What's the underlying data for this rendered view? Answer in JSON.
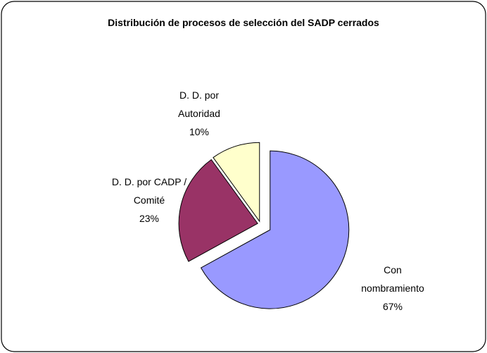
{
  "chart_data": {
    "type": "pie",
    "title": "Distribución de procesos de selección del SADP cerrados",
    "categories": [
      "Con nombramiento",
      "D. D. por CADP / Comité",
      "D. D. por Autoridad"
    ],
    "values": [
      67,
      23,
      10
    ],
    "value_labels": [
      "67%",
      "23%",
      "10%"
    ],
    "colors": [
      "#9999ff",
      "#993366",
      "#ffffcc"
    ]
  }
}
